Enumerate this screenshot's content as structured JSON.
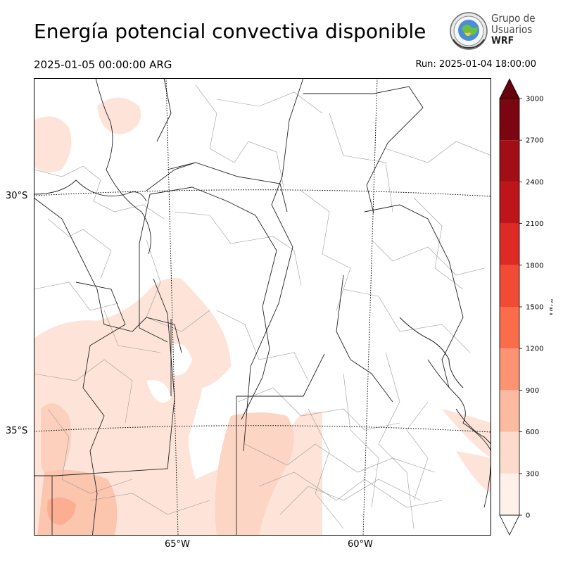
{
  "header": {
    "title": "Energía potencial convectiva disponible",
    "valid_time": "2025-01-05 00:00:00 ARG",
    "run": "Run: 2025-01-04 18:00:00"
  },
  "logo": {
    "line1": "Grupo de",
    "line2": "Usuarios",
    "line3": "WRF",
    "icon": "globe-seal-icon"
  },
  "map": {
    "latitudes": [
      {
        "label": "30°S"
      },
      {
        "label": "35°S"
      }
    ],
    "longitudes": [
      {
        "label": "65°W"
      },
      {
        "label": "60°W"
      }
    ],
    "field": "CAPE",
    "field_color": "#fee4d8"
  },
  "colorbar": {
    "label": "J/kg",
    "ticks": [
      "0",
      "300",
      "600",
      "900",
      "1200",
      "1500",
      "1800",
      "2100",
      "2400",
      "2700",
      "3000"
    ],
    "colors": [
      "#fff0e9",
      "#fddbcc",
      "#fcbba1",
      "#fc9474",
      "#fb6c4a",
      "#f24a35",
      "#dd2a25",
      "#be151a",
      "#a10e15",
      "#7b0510"
    ],
    "over_color": "#67000d",
    "under_color": "#ffffff"
  }
}
